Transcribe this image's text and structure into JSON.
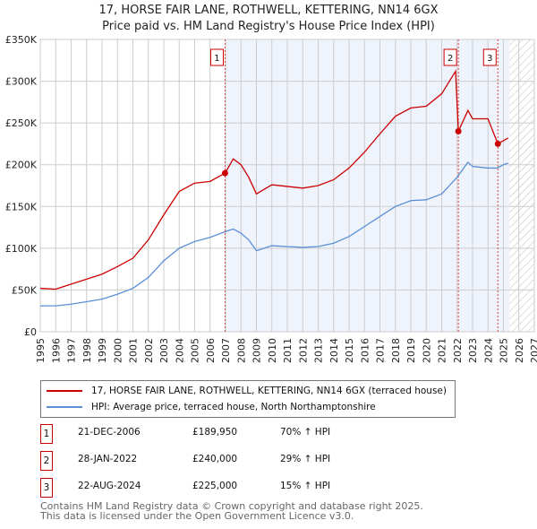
{
  "chart_data": {
    "type": "line",
    "title": "17, HORSE FAIR LANE, ROTHWELL, KETTERING, NN14 6GX",
    "subtitle": "Price paid vs. HM Land Registry's House Price Index (HPI)",
    "xlim": [
      1995,
      2027
    ],
    "ylim": [
      0,
      350000
    ],
    "yticks": [
      {
        "v": 0,
        "label": "£0"
      },
      {
        "v": 50000,
        "label": "£50K"
      },
      {
        "v": 100000,
        "label": "£100K"
      },
      {
        "v": 150000,
        "label": "£150K"
      },
      {
        "v": 200000,
        "label": "£200K"
      },
      {
        "v": 250000,
        "label": "£250K"
      },
      {
        "v": 300000,
        "label": "£300K"
      },
      {
        "v": 350000,
        "label": "£350K"
      }
    ],
    "xticks": [
      "1995",
      "1996",
      "1997",
      "1998",
      "1999",
      "2000",
      "2001",
      "2002",
      "2003",
      "2004",
      "2005",
      "2006",
      "2007",
      "2008",
      "2009",
      "2010",
      "2011",
      "2012",
      "2013",
      "2014",
      "2015",
      "2016",
      "2017",
      "2018",
      "2019",
      "2020",
      "2021",
      "2022",
      "2023",
      "2024",
      "2025",
      "2026",
      "2027"
    ],
    "series": [
      {
        "name": "17, HORSE FAIR LANE, ROTHWELL, KETTERING, NN14 6GX (terraced house)",
        "color": "#cc0000",
        "x": [
          1995,
          1996,
          1997,
          1998,
          1999,
          2000,
          2001,
          2002,
          2003,
          2004,
          2005,
          2006,
          2006.97,
          2007.5,
          2008,
          2008.5,
          2009,
          2010,
          2011,
          2012,
          2013,
          2014,
          2015,
          2016,
          2017,
          2018,
          2019,
          2020,
          2021,
          2021.9,
          2022.08,
          2022.7,
          2023,
          2024,
          2024.64,
          2025.3
        ],
        "y": [
          52000,
          51000,
          57000,
          63000,
          69000,
          78000,
          88000,
          110000,
          140000,
          168000,
          178000,
          180000,
          189950,
          207000,
          200000,
          185000,
          165000,
          176000,
          174000,
          172000,
          175000,
          182000,
          196000,
          215000,
          237000,
          258000,
          268000,
          270000,
          285000,
          312000,
          240000,
          265000,
          255000,
          255000,
          225000,
          232000
        ]
      },
      {
        "name": "HPI: Average price, terraced house, North Northamptonshire",
        "color": "#5b8fd6",
        "x": [
          1995,
          1996,
          1997,
          1998,
          1999,
          2000,
          2001,
          2002,
          2003,
          2004,
          2005,
          2006,
          2007,
          2007.5,
          2008,
          2008.5,
          2009,
          2010,
          2011,
          2012,
          2013,
          2014,
          2015,
          2016,
          2017,
          2018,
          2019,
          2020,
          2021,
          2022,
          2022.7,
          2023,
          2024,
          2024.6,
          2025,
          2025.3
        ],
        "y": [
          31000,
          31000,
          33000,
          36000,
          39000,
          45000,
          52000,
          65000,
          85000,
          100000,
          108000,
          113000,
          120000,
          123000,
          118000,
          110000,
          97000,
          103000,
          102000,
          101000,
          102000,
          106000,
          114000,
          126000,
          138000,
          150000,
          157000,
          158000,
          165000,
          185000,
          203000,
          198000,
          196000,
          196000,
          200000,
          202000
        ]
      }
    ],
    "sales": [
      {
        "n": "1",
        "x": 2006.97,
        "y": 189950,
        "date": "21-DEC-2006",
        "price": "£189,950",
        "hpi": "70% ↑ HPI"
      },
      {
        "n": "2",
        "x": 2022.08,
        "y": 240000,
        "date": "28-JAN-2022",
        "price": "£240,000",
        "hpi": "29% ↑ HPI"
      },
      {
        "n": "3",
        "x": 2024.64,
        "y": 225000,
        "date": "22-AUG-2024",
        "price": "£225,000",
        "hpi": "15% ↑ HPI"
      }
    ],
    "data_end": 2025.4,
    "legend_position": "below"
  },
  "footer": {
    "line1": "Contains HM Land Registry data © Crown copyright and database right 2025.",
    "line2": "This data is licensed under the Open Government Licence v3.0."
  }
}
